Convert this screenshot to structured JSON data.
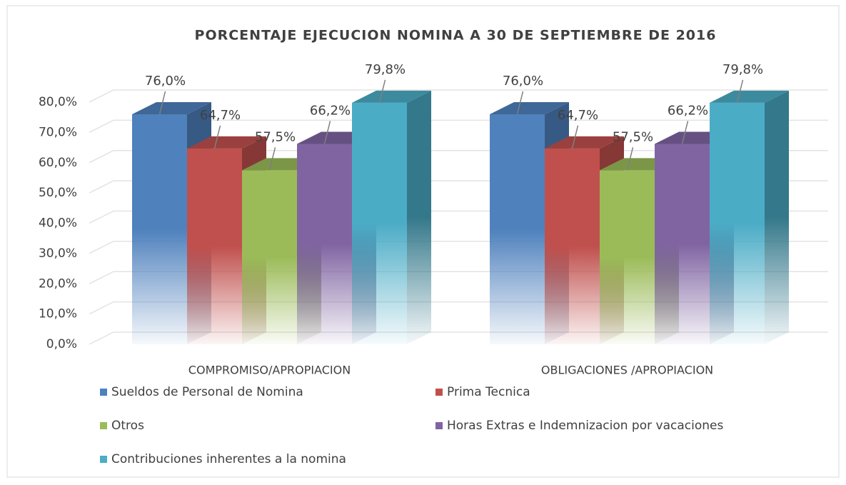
{
  "chart_data": {
    "type": "bar3d",
    "title": "PORCENTAJE EJECUCION NOMINA A 30 DE SEPTIEMBRE DE 2016",
    "categories": [
      "COMPROMISO/APROPIACION",
      "OBLIGACIONES /APROPIACION"
    ],
    "series": [
      {
        "name": "Sueldos de Personal de Nomina",
        "color": "#4f81bd",
        "values": [
          76.0,
          76.0
        ],
        "value_labels": [
          "76,0%",
          "76,0%"
        ]
      },
      {
        "name": "Prima Tecnica",
        "color": "#c0504d",
        "values": [
          64.7,
          64.7
        ],
        "value_labels": [
          "64,7%",
          "64,7%"
        ]
      },
      {
        "name": "Otros",
        "color": "#9bbb59",
        "values": [
          57.5,
          57.5
        ],
        "value_labels": [
          "57,5%",
          "57,5%"
        ]
      },
      {
        "name": "Horas Extras e Indemnizacion por vacaciones",
        "color": "#8064a2",
        "values": [
          66.2,
          66.2
        ],
        "value_labels": [
          "66,2%",
          "66,2%"
        ]
      },
      {
        "name": "Contribuciones inherentes a la nomina",
        "color": "#4bacc6",
        "values": [
          79.8,
          79.8
        ],
        "value_labels": [
          "79,8%",
          "79,8%"
        ]
      }
    ],
    "ylim": [
      0,
      80
    ],
    "yticks": [
      {
        "value": 0,
        "label": "0,0%"
      },
      {
        "value": 10,
        "label": "10,0%"
      },
      {
        "value": 20,
        "label": "20,0%"
      },
      {
        "value": 30,
        "label": "30,0%"
      },
      {
        "value": 40,
        "label": "40,0%"
      },
      {
        "value": 50,
        "label": "50,0%"
      },
      {
        "value": 60,
        "label": "60,0%"
      },
      {
        "value": 70,
        "label": "70,0%"
      },
      {
        "value": 80,
        "label": "80,0%"
      }
    ],
    "grid": true,
    "legend": "bottom"
  }
}
